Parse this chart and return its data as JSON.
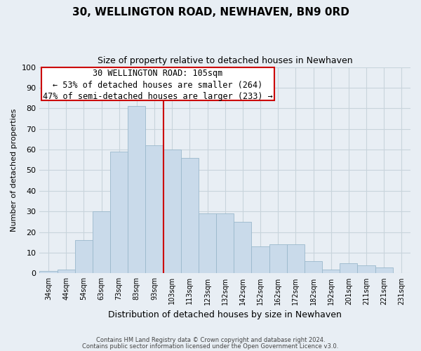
{
  "title": "30, WELLINGTON ROAD, NEWHAVEN, BN9 0RD",
  "subtitle": "Size of property relative to detached houses in Newhaven",
  "xlabel": "Distribution of detached houses by size in Newhaven",
  "ylabel": "Number of detached properties",
  "bar_labels": [
    "34sqm",
    "44sqm",
    "54sqm",
    "63sqm",
    "73sqm",
    "83sqm",
    "93sqm",
    "103sqm",
    "113sqm",
    "123sqm",
    "132sqm",
    "142sqm",
    "152sqm",
    "162sqm",
    "172sqm",
    "182sqm",
    "192sqm",
    "201sqm",
    "211sqm",
    "221sqm",
    "231sqm"
  ],
  "bar_values": [
    1,
    2,
    16,
    30,
    59,
    81,
    62,
    60,
    56,
    29,
    29,
    25,
    13,
    14,
    14,
    6,
    2,
    5,
    4,
    3,
    0
  ],
  "bar_color": "#c9daea",
  "bar_edge_color": "#9ab8cc",
  "vline_color": "#cc0000",
  "vline_x_index": 7,
  "ylim": [
    0,
    100
  ],
  "yticks": [
    0,
    10,
    20,
    30,
    40,
    50,
    60,
    70,
    80,
    90,
    100
  ],
  "annotation_title": "30 WELLINGTON ROAD: 105sqm",
  "annotation_line1": "← 53% of detached houses are smaller (264)",
  "annotation_line2": "47% of semi-detached houses are larger (233) →",
  "annotation_box_color": "#ffffff",
  "annotation_box_edge": "#cc0000",
  "footer1": "Contains HM Land Registry data © Crown copyright and database right 2024.",
  "footer2": "Contains public sector information licensed under the Open Government Licence v3.0.",
  "background_color": "#e8eef4",
  "grid_color": "#c8d4dc"
}
